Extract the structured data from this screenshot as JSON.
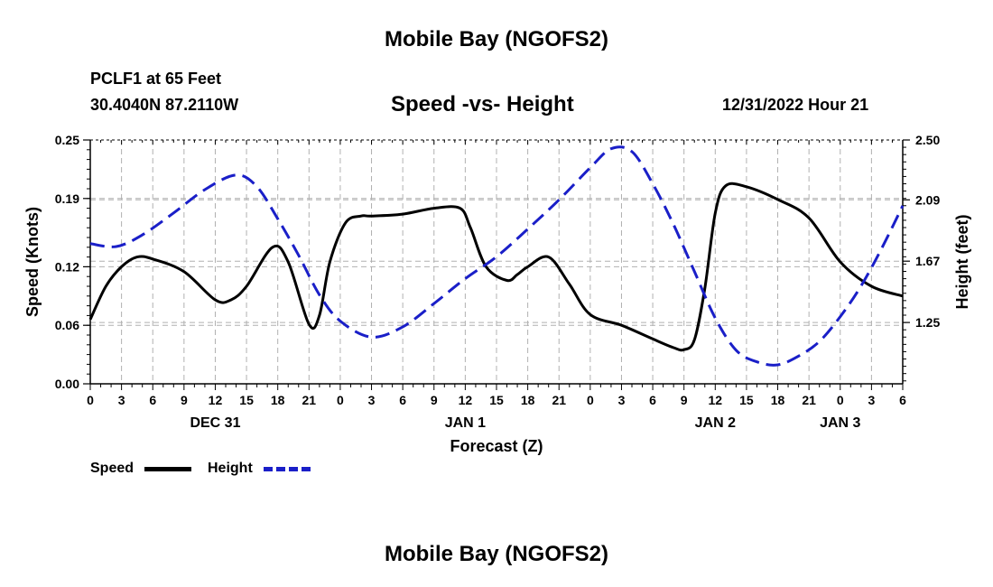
{
  "header": {
    "title": "Mobile Bay (NGOFS2)",
    "station": "PCLF1 at 65 Feet",
    "coords": "30.4040N  87.2110W",
    "subtitle": "Speed -vs- Height",
    "timestamp": "12/31/2022 Hour 21"
  },
  "footer": {
    "title": "Mobile Bay (NGOFS2)"
  },
  "legend": {
    "speed_label": "Speed",
    "height_label": "Height"
  },
  "colors": {
    "speed": "#000000",
    "height": "#1a1fc8",
    "grid": "#b0b0b0"
  },
  "chart_data": {
    "type": "line",
    "xlabel": "Forecast (Z)",
    "ylabel": "Speed (Knots)",
    "y2label": "Height (feet)",
    "xlim": [
      0,
      78
    ],
    "ylim": [
      0,
      0.25
    ],
    "y2lim": [
      0.83,
      2.5
    ],
    "x_ticks": [
      0,
      3,
      6,
      9,
      12,
      15,
      18,
      21,
      24,
      27,
      30,
      33,
      36,
      39,
      42,
      45,
      48,
      51,
      54,
      57,
      60,
      63,
      66,
      69,
      72,
      75,
      78
    ],
    "x_tick_labels": [
      "0",
      "3",
      "6",
      "9",
      "12",
      "15",
      "18",
      "21",
      "0",
      "3",
      "6",
      "9",
      "12",
      "15",
      "18",
      "21",
      "0",
      "3",
      "6",
      "9",
      "12",
      "15",
      "18",
      "21",
      "0",
      "3",
      "6"
    ],
    "y_ticks": [
      0,
      0.06,
      0.12,
      0.19,
      0.25
    ],
    "y_tick_labels": [
      "0.00",
      "0.06",
      "0.12",
      "0.19",
      "0.25"
    ],
    "y2_ticks": [
      1.25,
      1.67,
      2.09,
      2.5
    ],
    "y2_tick_labels": [
      "1.25",
      "1.67",
      "2.09",
      "2.50"
    ],
    "day_labels": [
      {
        "x": 12,
        "label": "DEC 31"
      },
      {
        "x": 36,
        "label": "JAN 1"
      },
      {
        "x": 60,
        "label": "JAN 2"
      },
      {
        "x": 72,
        "label": "JAN 3"
      }
    ],
    "series": [
      {
        "name": "Speed",
        "axis": "left",
        "style": "solid",
        "x": [
          0,
          1.5,
          3,
          4.5,
          6,
          9,
          12,
          13.5,
          15,
          17.5,
          19,
          21,
          22,
          23,
          24.5,
          26,
          27,
          30,
          33,
          35.5,
          36.5,
          38,
          40,
          41,
          42,
          44,
          46,
          48,
          51,
          54,
          56,
          57,
          58,
          59,
          60,
          61,
          63,
          66,
          69,
          72,
          75,
          78
        ],
        "values": [
          0.066,
          0.1,
          0.12,
          0.13,
          0.128,
          0.115,
          0.086,
          0.086,
          0.1,
          0.14,
          0.125,
          0.061,
          0.07,
          0.125,
          0.165,
          0.172,
          0.172,
          0.174,
          0.18,
          0.18,
          0.16,
          0.12,
          0.106,
          0.112,
          0.12,
          0.13,
          0.102,
          0.071,
          0.06,
          0.046,
          0.037,
          0.035,
          0.045,
          0.098,
          0.175,
          0.203,
          0.202,
          0.189,
          0.17,
          0.125,
          0.1,
          0.09
        ]
      },
      {
        "name": "Height",
        "axis": "right",
        "style": "dashed",
        "x": [
          0,
          2.5,
          5,
          8,
          11,
          14,
          16,
          18,
          20,
          22,
          24,
          27,
          30,
          33,
          36,
          39,
          42,
          45,
          48,
          50,
          52,
          54,
          56,
          58,
          60,
          62,
          64,
          66,
          68,
          70,
          72,
          74,
          76,
          78
        ],
        "values": [
          1.79,
          1.77,
          1.85,
          2.0,
          2.16,
          2.26,
          2.18,
          1.96,
          1.71,
          1.44,
          1.26,
          1.15,
          1.22,
          1.38,
          1.55,
          1.7,
          1.89,
          2.09,
          2.31,
          2.44,
          2.42,
          2.2,
          1.92,
          1.6,
          1.28,
          1.06,
          0.98,
          0.96,
          1.02,
          1.12,
          1.29,
          1.5,
          1.76,
          2.05
        ]
      }
    ]
  }
}
